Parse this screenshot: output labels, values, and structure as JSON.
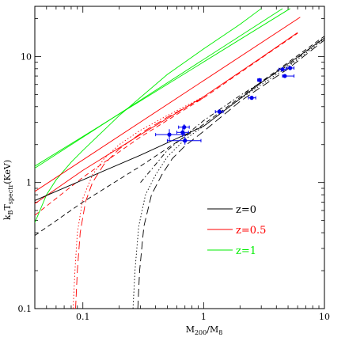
{
  "chart_data": {
    "type": "line",
    "title": "",
    "xlabel_main": "M",
    "xlabel_sub": "200",
    "xlabel_rest": "/M",
    "xlabel_sub2": "8",
    "ylabel_main": "k",
    "ylabel_sub": "B",
    "ylabel_mid": "T",
    "ylabel_sub2": "spectr",
    "ylabel_rest": "(KeV)",
    "xscale": "log",
    "yscale": "log",
    "xlim": [
      0.04,
      10
    ],
    "ylim": [
      0.1,
      25
    ],
    "x_ticks": [
      {
        "value": 0.1,
        "label": "0.1"
      },
      {
        "value": 1,
        "label": "1"
      },
      {
        "value": 10,
        "label": "10"
      }
    ],
    "y_ticks": [
      {
        "value": 0.1,
        "label": "0.1"
      },
      {
        "value": 1,
        "label": "1"
      },
      {
        "value": 10,
        "label": "10"
      }
    ],
    "legend": {
      "placement": "bottom-right",
      "entries": [
        {
          "label": "z=0",
          "color": "#000000"
        },
        {
          "label": "z=0.5",
          "color": "#ff0000"
        },
        {
          "label": "z=1",
          "color": "#00ee00"
        }
      ]
    },
    "series": [
      {
        "color": "#00ee00",
        "style": "solid",
        "points": [
          [
            0.04,
            1.3
          ],
          [
            4.5,
            24
          ]
        ]
      },
      {
        "color": "#00ee00",
        "style": "solid",
        "points": [
          [
            0.04,
            1.35
          ],
          [
            5.2,
            24
          ]
        ]
      },
      {
        "color": "#00ee00",
        "style": "solid",
        "points": [
          [
            0.04,
            0.48
          ],
          [
            0.05,
            0.8
          ],
          [
            0.06,
            1.05
          ],
          [
            0.08,
            1.45
          ],
          [
            0.1,
            1.8
          ],
          [
            0.2,
            3.4
          ],
          [
            0.5,
            7.2
          ],
          [
            1,
            11.5
          ],
          [
            2,
            18
          ],
          [
            3,
            24
          ]
        ]
      },
      {
        "color": "#ff0000",
        "style": "solid",
        "points": [
          [
            0.04,
            0.85
          ],
          [
            6.3,
            20.5
          ]
        ]
      },
      {
        "color": "#ff0000",
        "style": "solid",
        "points": [
          [
            0.04,
            0.68
          ],
          [
            0.1,
            1.25
          ],
          [
            0.3,
            2.4
          ],
          [
            1,
            4.8
          ],
          [
            3,
            9.8
          ],
          [
            6,
            15.5
          ]
        ]
      },
      {
        "color": "#ff0000",
        "style": "dashed",
        "points": [
          [
            0.04,
            0.55
          ],
          [
            0.1,
            1.1
          ],
          [
            0.3,
            2.3
          ],
          [
            1,
            4.7
          ],
          [
            3,
            9.7
          ],
          [
            6,
            15.3
          ]
        ]
      },
      {
        "color": "#ff0000",
        "style": "dotted",
        "points": [
          [
            0.083,
            0.1
          ],
          [
            0.086,
            0.2
          ],
          [
            0.09,
            0.4
          ],
          [
            0.1,
            0.75
          ],
          [
            0.12,
            1.15
          ],
          [
            0.15,
            1.55
          ],
          [
            0.2,
            2.0
          ],
          [
            0.3,
            2.6
          ],
          [
            0.5,
            3.4
          ],
          [
            1,
            4.8
          ]
        ]
      },
      {
        "color": "#ff0000",
        "style": "longdash",
        "points": [
          [
            0.087,
            0.1
          ],
          [
            0.09,
            0.2
          ],
          [
            0.095,
            0.4
          ],
          [
            0.105,
            0.7
          ],
          [
            0.12,
            1.0
          ],
          [
            0.15,
            1.4
          ],
          [
            0.2,
            1.85
          ],
          [
            0.3,
            2.45
          ],
          [
            0.5,
            3.3
          ],
          [
            1,
            4.7
          ]
        ]
      },
      {
        "color": "#000000",
        "style": "solid",
        "points": [
          [
            0.04,
            0.72
          ],
          [
            0.1,
            1.05
          ],
          [
            0.3,
            1.65
          ],
          [
            1,
            2.8
          ],
          [
            3,
            6.2
          ],
          [
            10,
            14
          ]
        ]
      },
      {
        "color": "#000000",
        "style": "dashed",
        "points": [
          [
            0.04,
            0.38
          ],
          [
            0.1,
            0.7
          ],
          [
            0.3,
            1.35
          ],
          [
            1,
            2.9
          ],
          [
            3,
            6.3
          ],
          [
            10,
            14.5
          ]
        ]
      },
      {
        "color": "#000000",
        "style": "dotdash",
        "points": [
          [
            0.3,
            1.0
          ],
          [
            0.5,
            1.8
          ],
          [
            1,
            3.1
          ],
          [
            2,
            4.9
          ],
          [
            5,
            8.5
          ],
          [
            10,
            14.2
          ]
        ]
      },
      {
        "color": "#000000",
        "style": "dotted",
        "points": [
          [
            0.26,
            0.1
          ],
          [
            0.27,
            0.2
          ],
          [
            0.29,
            0.45
          ],
          [
            0.33,
            0.8
          ],
          [
            0.4,
            1.15
          ],
          [
            0.5,
            1.6
          ],
          [
            0.7,
            2.2
          ],
          [
            1,
            2.8
          ],
          [
            2,
            4.6
          ],
          [
            5,
            8.3
          ],
          [
            10,
            13.8
          ]
        ]
      },
      {
        "color": "#000000",
        "style": "longdash",
        "points": [
          [
            0.285,
            0.1
          ],
          [
            0.295,
            0.2
          ],
          [
            0.32,
            0.45
          ],
          [
            0.37,
            0.8
          ],
          [
            0.45,
            1.15
          ],
          [
            0.55,
            1.55
          ],
          [
            0.7,
            1.95
          ],
          [
            1,
            2.55
          ],
          [
            2,
            4.4
          ],
          [
            5,
            8.0
          ],
          [
            10,
            13.5
          ]
        ]
      }
    ],
    "points": [
      {
        "x": 0.52,
        "y": 2.4,
        "xerr": [
          0.4,
          0.7
        ],
        "yerr": [
          2.15,
          2.65
        ]
      },
      {
        "x": 0.67,
        "y": 2.5,
        "xerr": [
          0.6,
          0.75
        ],
        "yerr": [
          2.3,
          2.7
        ]
      },
      {
        "x": 0.69,
        "y": 2.75,
        "xerr": [
          0.62,
          0.76
        ],
        "yerr": [
          2.6,
          2.9
        ]
      },
      {
        "x": 0.7,
        "y": 2.15,
        "xerr": [
          0.5,
          0.95
        ],
        "yerr": [
          2.0,
          2.3
        ]
      },
      {
        "x": 1.35,
        "y": 3.65,
        "xerr": [
          1.25,
          1.45
        ],
        "yerr": [
          3.5,
          3.8
        ]
      },
      {
        "x": 2.5,
        "y": 4.7,
        "xerr": [
          2.35,
          2.7
        ],
        "yerr": [
          4.55,
          4.85
        ]
      },
      {
        "x": 2.9,
        "y": 6.5,
        "xerr": [
          2.8,
          3.0
        ],
        "yerr": [
          6.3,
          6.7
        ]
      },
      {
        "x": 4.5,
        "y": 7.9,
        "xerr": [
          4.2,
          4.8
        ],
        "yerr": [
          7.6,
          8.2
        ]
      },
      {
        "x": 4.7,
        "y": 7.0,
        "xerr": [
          4.5,
          5.6
        ],
        "yerr": [
          6.8,
          7.2
        ]
      },
      {
        "x": 5.2,
        "y": 8.1,
        "xerr": [
          4.9,
          5.6
        ],
        "yerr": [
          7.8,
          8.4
        ]
      }
    ]
  }
}
